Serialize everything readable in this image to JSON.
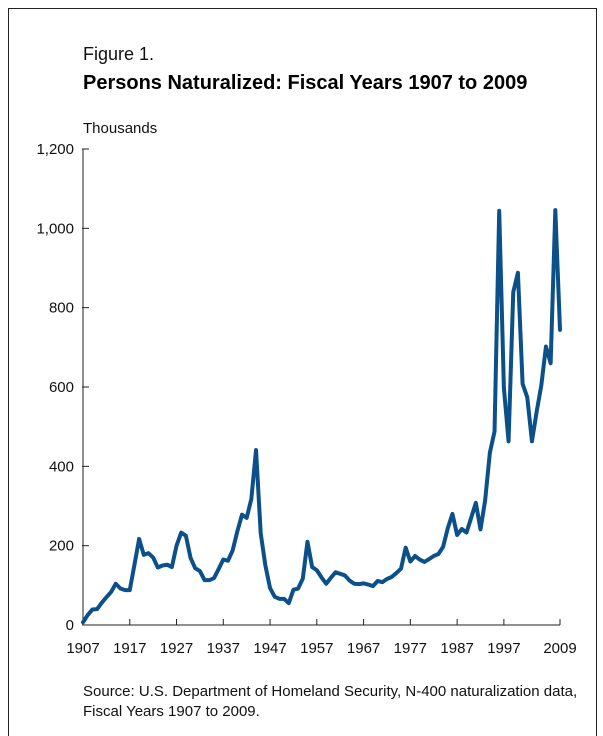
{
  "figure": {
    "label": "Figure 1.",
    "title": "Persons Naturalized: Fiscal Years 1907 to 2009",
    "source": "Source: U.S. Department of Homeland Security, N-400 naturalization data, Fiscal Years 1907 to 2009."
  },
  "chart_data": {
    "type": "line",
    "title": "Persons Naturalized: Fiscal Years 1907 to 2009",
    "ylabel": "Thousands",
    "xlabel": "",
    "xlim": [
      1907,
      2009
    ],
    "ylim": [
      0,
      1200
    ],
    "xticks": [
      1907,
      1917,
      1927,
      1937,
      1947,
      1957,
      1967,
      1977,
      1987,
      1997,
      2009
    ],
    "yticks": [
      0,
      200,
      400,
      600,
      800,
      1000,
      1200
    ],
    "ytick_labels": [
      "0",
      "200",
      "400",
      "600",
      "800",
      "1,000",
      "1,200"
    ],
    "grid": false,
    "line_color": "#0b5089",
    "series": [
      {
        "x": [
          1907,
          1908,
          1909,
          1910,
          1911,
          1912,
          1913,
          1914,
          1915,
          1916,
          1917,
          1918,
          1919,
          1920,
          1921,
          1922,
          1923,
          1924,
          1925,
          1926,
          1927,
          1928,
          1929,
          1930,
          1931,
          1932,
          1933,
          1934,
          1935,
          1936,
          1937,
          1938,
          1939,
          1940,
          1941,
          1942,
          1943,
          1944,
          1945,
          1946,
          1947,
          1948,
          1949,
          1950,
          1951,
          1952,
          1953,
          1954,
          1955,
          1956,
          1957,
          1958,
          1959,
          1960,
          1961,
          1962,
          1963,
          1964,
          1965,
          1966,
          1967,
          1968,
          1969,
          1970,
          1971,
          1972,
          1973,
          1974,
          1975,
          1976,
          1977,
          1978,
          1979,
          1980,
          1981,
          1982,
          1983,
          1984,
          1985,
          1986,
          1987,
          1988,
          1989,
          1990,
          1991,
          1992,
          1993,
          1994,
          1995,
          1996,
          1997,
          1998,
          1999,
          2000,
          2001,
          2002,
          2003,
          2004,
          2005,
          2006,
          2007,
          2008,
          2009
        ],
        "values": [
          7,
          25,
          39,
          40,
          56,
          70,
          83,
          104,
          92,
          88,
          88,
          152,
          217,
          177,
          181,
          170,
          145,
          150,
          152,
          146,
          200,
          233,
          225,
          169,
          143,
          136,
          113,
          113,
          118,
          141,
          165,
          162,
          188,
          236,
          278,
          270,
          318,
          441,
          231,
          150,
          93,
          71,
          66,
          66,
          55,
          89,
          92,
          117,
          210,
          146,
          138,
          120,
          104,
          119,
          133,
          129,
          125,
          112,
          104,
          103,
          105,
          102,
          98,
          111,
          108,
          116,
          121,
          131,
          142,
          195,
          160,
          174,
          165,
          159,
          166,
          174,
          179,
          197,
          244,
          280,
          227,
          242,
          233,
          270,
          308,
          241,
          315,
          434,
          488,
          1044,
          598,
          463,
          839,
          888,
          608,
          574,
          463,
          537,
          604,
          702,
          660,
          1046,
          744
        ]
      }
    ]
  }
}
